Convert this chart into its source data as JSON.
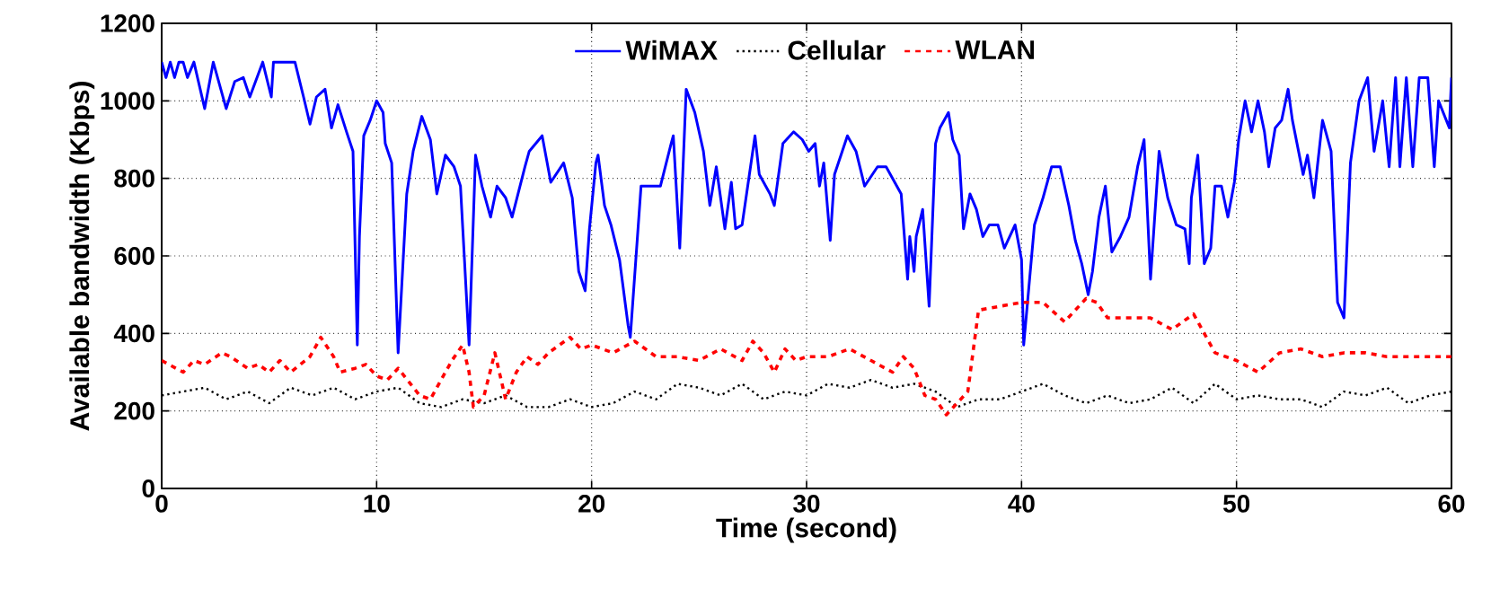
{
  "chart_data": {
    "type": "line",
    "xlabel": "Time (second)",
    "ylabel": "Available bandwidth (Kbps)",
    "xlim": [
      0,
      60
    ],
    "ylim": [
      0,
      1200
    ],
    "xticks": [
      0,
      10,
      20,
      30,
      40,
      50,
      60
    ],
    "yticks": [
      0,
      200,
      400,
      600,
      800,
      1000,
      1200
    ],
    "grid": true,
    "legend": "top",
    "marker": "none",
    "series": [
      {
        "name": "WiMAX",
        "color": "#0000ff",
        "line_style": "solid",
        "x": [
          0,
          0.2,
          0.4,
          0.6,
          0.8,
          1.0,
          1.2,
          1.5,
          2.0,
          2.4,
          3.0,
          3.4,
          3.8,
          4.1,
          4.7,
          5.1,
          5.2,
          6.2,
          6.6,
          6.9,
          7.2,
          7.6,
          7.9,
          8.2,
          8.6,
          8.9,
          9.1,
          9.2,
          9.4,
          9.7,
          10.0,
          10.3,
          10.4,
          10.7,
          11.0,
          11.4,
          11.7,
          12.1,
          12.5,
          12.8,
          13.2,
          13.6,
          13.9,
          14.3,
          14.6,
          14.9,
          15.3,
          15.6,
          16.0,
          16.3,
          16.9,
          17.1,
          17.7,
          18.1,
          18.7,
          19.1,
          19.4,
          19.7,
          19.9,
          20.2,
          20.3,
          20.6,
          20.9,
          21.3,
          21.7,
          21.8,
          22.3,
          22.7,
          23.2,
          23.7,
          23.8,
          24.1,
          24.4,
          24.8,
          25.2,
          25.5,
          25.8,
          26.2,
          26.5,
          26.7,
          27.0,
          27.6,
          27.8,
          28.3,
          28.5,
          28.9,
          29.4,
          29.8,
          30.1,
          30.4,
          30.6,
          30.8,
          31.1,
          31.3,
          31.9,
          32.3,
          32.7,
          33.3,
          33.7,
          34.4,
          34.7,
          34.8,
          35.0,
          35.1,
          35.4,
          35.7,
          36.0,
          36.2,
          36.4,
          36.6,
          36.8,
          37.1,
          37.3,
          37.6,
          37.9,
          38.2,
          38.5,
          38.9,
          39.2,
          39.7,
          40.0,
          40.1,
          40.6,
          41.0,
          41.4,
          41.8,
          42.2,
          42.5,
          42.8,
          43.1,
          43.3,
          43.6,
          43.9,
          44.2,
          44.6,
          45.0,
          45.4,
          45.7,
          46.0,
          46.4,
          46.8,
          47.2,
          47.6,
          47.8,
          47.9,
          48.2,
          48.5,
          48.8,
          49.0,
          49.3,
          49.6,
          49.9,
          50.1,
          50.4,
          50.7,
          51.0,
          51.3,
          51.5,
          51.8,
          52.1,
          52.4,
          52.6,
          53.1,
          53.3,
          53.6,
          54.0,
          54.4,
          54.7,
          55.0,
          55.3,
          55.7,
          56.1,
          56.4,
          56.8,
          57.1,
          57.4,
          57.6,
          57.9,
          58.2,
          58.5,
          58.9,
          59.2,
          59.4,
          59.9,
          60.0
        ],
        "values": [
          1100,
          1060,
          1100,
          1060,
          1100,
          1100,
          1060,
          1100,
          980,
          1100,
          980,
          1050,
          1060,
          1010,
          1100,
          1010,
          1100,
          1100,
          1010,
          940,
          1010,
          1030,
          930,
          990,
          920,
          870,
          370,
          650,
          910,
          950,
          1000,
          970,
          890,
          840,
          350,
          760,
          870,
          960,
          900,
          760,
          860,
          830,
          780,
          370,
          860,
          780,
          700,
          780,
          750,
          700,
          830,
          870,
          910,
          790,
          840,
          750,
          560,
          510,
          670,
          840,
          860,
          730,
          680,
          590,
          420,
          390,
          780,
          780,
          780,
          890,
          910,
          620,
          1030,
          970,
          870,
          730,
          830,
          670,
          790,
          670,
          680,
          910,
          810,
          760,
          730,
          890,
          920,
          900,
          870,
          890,
          780,
          840,
          640,
          810,
          910,
          870,
          780,
          830,
          830,
          760,
          540,
          650,
          560,
          650,
          720,
          470,
          890,
          930,
          950,
          970,
          900,
          860,
          670,
          760,
          720,
          650,
          680,
          680,
          620,
          680,
          590,
          370,
          680,
          750,
          830,
          830,
          730,
          640,
          580,
          500,
          560,
          700,
          780,
          610,
          650,
          700,
          830,
          900,
          540,
          870,
          750,
          680,
          670,
          580,
          750,
          860,
          580,
          620,
          780,
          780,
          700,
          790,
          900,
          1000,
          920,
          1000,
          920,
          830,
          930,
          950,
          1030,
          950,
          810,
          860,
          750,
          950,
          870,
          480,
          440,
          840,
          1000,
          1060,
          870,
          1000,
          830,
          1060,
          830,
          1060,
          830,
          1060,
          1060,
          830,
          1000,
          930,
          1060
        ]
      },
      {
        "name": "Cellular",
        "color": "#000000",
        "line_style": "dotted",
        "x": [
          0,
          1,
          2,
          3,
          4,
          5,
          6,
          7,
          8,
          9,
          10,
          11,
          12,
          13,
          14,
          15,
          16,
          17,
          18,
          19,
          20,
          21,
          22,
          23,
          24,
          25,
          26,
          27,
          28,
          29,
          30,
          31,
          32,
          33,
          34,
          35,
          36,
          37,
          38,
          39,
          40,
          41,
          42,
          43,
          44,
          45,
          46,
          47,
          48,
          49,
          50,
          51,
          52,
          53,
          54,
          55,
          56,
          57,
          58,
          59,
          60
        ],
        "values": [
          240,
          250,
          260,
          230,
          250,
          220,
          260,
          240,
          260,
          230,
          250,
          260,
          220,
          210,
          230,
          220,
          240,
          210,
          210,
          230,
          210,
          220,
          250,
          230,
          270,
          260,
          240,
          270,
          230,
          250,
          240,
          270,
          260,
          280,
          260,
          270,
          250,
          210,
          230,
          230,
          250,
          270,
          240,
          220,
          240,
          220,
          230,
          260,
          220,
          270,
          230,
          240,
          230,
          230,
          210,
          250,
          240,
          260,
          220,
          240,
          250
        ]
      },
      {
        "name": "WLAN",
        "color": "#ff0000",
        "line_style": "dashed",
        "x": [
          0,
          1,
          1.5,
          2,
          2.8,
          3.2,
          4,
          4.5,
          5,
          5.5,
          6,
          6.9,
          7.4,
          8,
          8.3,
          9,
          9.5,
          10,
          10.5,
          11,
          12,
          12.5,
          13,
          13.5,
          14,
          14.3,
          14.5,
          15,
          15.5,
          16,
          16.5,
          17,
          17.5,
          18,
          18.5,
          19,
          19.5,
          20,
          21,
          22,
          23,
          24,
          25,
          26,
          27,
          27.5,
          28,
          28.5,
          29,
          29.5,
          30,
          31,
          32,
          33,
          34,
          34.5,
          35,
          35.5,
          36,
          36.5,
          37,
          37.5,
          38,
          39,
          40,
          41,
          42,
          42.5,
          43,
          43.5,
          44,
          45,
          46,
          47,
          48,
          48.5,
          49,
          49.5,
          50,
          51,
          52,
          53,
          54,
          55,
          56,
          57,
          58,
          59,
          60
        ],
        "values": [
          330,
          300,
          330,
          320,
          350,
          340,
          310,
          320,
          300,
          330,
          300,
          340,
          390,
          340,
          300,
          310,
          320,
          290,
          280,
          310,
          240,
          230,
          280,
          330,
          370,
          300,
          210,
          240,
          350,
          230,
          300,
          340,
          320,
          350,
          370,
          390,
          360,
          370,
          350,
          380,
          340,
          340,
          330,
          360,
          330,
          380,
          350,
          300,
          360,
          330,
          340,
          340,
          360,
          330,
          300,
          340,
          310,
          240,
          230,
          190,
          220,
          250,
          460,
          470,
          480,
          480,
          430,
          460,
          490,
          480,
          440,
          440,
          440,
          410,
          450,
          400,
          350,
          340,
          330,
          300,
          350,
          360,
          340,
          350,
          350,
          340,
          340,
          340,
          340
        ]
      }
    ]
  }
}
